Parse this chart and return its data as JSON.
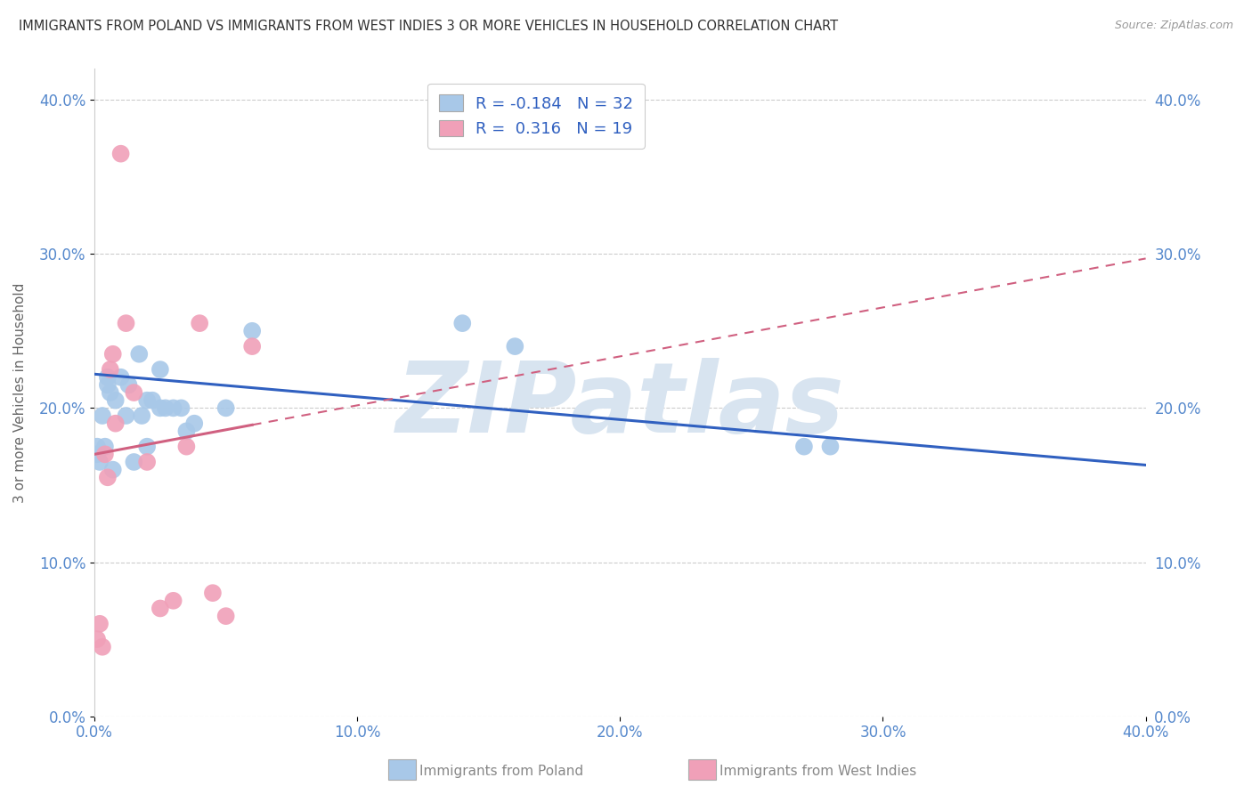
{
  "title": "IMMIGRANTS FROM POLAND VS IMMIGRANTS FROM WEST INDIES 3 OR MORE VEHICLES IN HOUSEHOLD CORRELATION CHART",
  "source": "Source: ZipAtlas.com",
  "ylabel": "3 or more Vehicles in Household",
  "xlabel_poland": "Immigrants from Poland",
  "xlabel_westindies": "Immigrants from West Indies",
  "R_poland": -0.184,
  "N_poland": 32,
  "R_westindies": 0.316,
  "N_westindies": 19,
  "color_poland": "#a8c8e8",
  "color_westindies": "#f0a0b8",
  "line_color_poland": "#3060c0",
  "line_color_westindies": "#d06080",
  "xlim": [
    0.0,
    0.4
  ],
  "ylim": [
    0.0,
    0.42
  ],
  "xticks": [
    0.0,
    0.1,
    0.2,
    0.3,
    0.4
  ],
  "yticks": [
    0.0,
    0.1,
    0.2,
    0.3,
    0.4
  ],
  "poland_x": [
    0.001,
    0.001,
    0.002,
    0.003,
    0.004,
    0.005,
    0.005,
    0.006,
    0.007,
    0.008,
    0.01,
    0.012,
    0.013,
    0.015,
    0.017,
    0.018,
    0.02,
    0.022,
    0.025,
    0.027,
    0.03,
    0.033,
    0.035,
    0.038,
    0.02,
    0.025,
    0.05,
    0.06,
    0.14,
    0.16,
    0.27,
    0.28
  ],
  "poland_y": [
    0.17,
    0.175,
    0.165,
    0.195,
    0.175,
    0.215,
    0.22,
    0.21,
    0.16,
    0.205,
    0.22,
    0.195,
    0.215,
    0.165,
    0.235,
    0.195,
    0.205,
    0.205,
    0.225,
    0.2,
    0.2,
    0.2,
    0.185,
    0.19,
    0.175,
    0.2,
    0.2,
    0.25,
    0.255,
    0.24,
    0.175,
    0.175
  ],
  "westindies_x": [
    0.001,
    0.002,
    0.003,
    0.004,
    0.005,
    0.006,
    0.007,
    0.008,
    0.01,
    0.012,
    0.015,
    0.02,
    0.025,
    0.03,
    0.035,
    0.04,
    0.045,
    0.05,
    0.06
  ],
  "westindies_y": [
    0.05,
    0.06,
    0.045,
    0.17,
    0.155,
    0.225,
    0.235,
    0.19,
    0.365,
    0.255,
    0.21,
    0.165,
    0.07,
    0.075,
    0.175,
    0.255,
    0.08,
    0.065,
    0.24
  ],
  "background_color": "#ffffff",
  "grid_color": "#cccccc",
  "watermark": "ZIPatlas",
  "watermark_color": "#d8e4f0",
  "tick_color": "#5588cc",
  "right_tick_color": "#5588cc"
}
